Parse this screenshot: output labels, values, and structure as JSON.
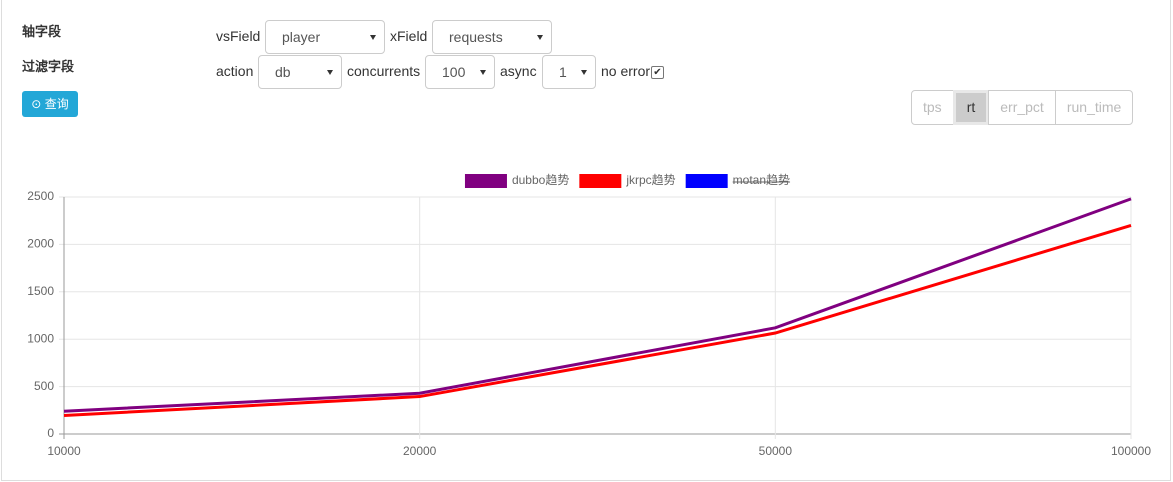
{
  "form": {
    "axis_label": "轴字段",
    "filter_label": "过滤字段",
    "query_button": "查询",
    "row1": [
      {
        "label": "vsField",
        "value": "player"
      },
      {
        "label": "xField",
        "value": "requests"
      }
    ],
    "row2": [
      {
        "label": "action",
        "value": "db"
      },
      {
        "label": "concurrents",
        "value": "100"
      },
      {
        "label": "async",
        "value": "1"
      }
    ],
    "checkbox": {
      "label": "no error",
      "checked": true
    }
  },
  "tabs": {
    "items": [
      "tps",
      "rt",
      "err_pct",
      "run_time"
    ],
    "active": 1
  },
  "chart_data": {
    "type": "line",
    "categories": [
      "10000",
      "20000",
      "50000",
      "100000"
    ],
    "series": [
      {
        "name": "dubbo趋势",
        "color": "#800080",
        "values": [
          240,
          430,
          1120,
          2480
        ]
      },
      {
        "name": "jkrpc趋势",
        "color": "#ff0000",
        "values": [
          195,
          395,
          1065,
          2200
        ]
      },
      {
        "name": "motan趋势",
        "color": "#0000ff",
        "values": [
          null,
          null,
          null,
          null
        ],
        "hidden": true
      }
    ],
    "ylim": [
      0,
      2500
    ],
    "yticks": [
      0,
      500,
      1000,
      1500,
      2000,
      2500
    ],
    "grid": true
  }
}
